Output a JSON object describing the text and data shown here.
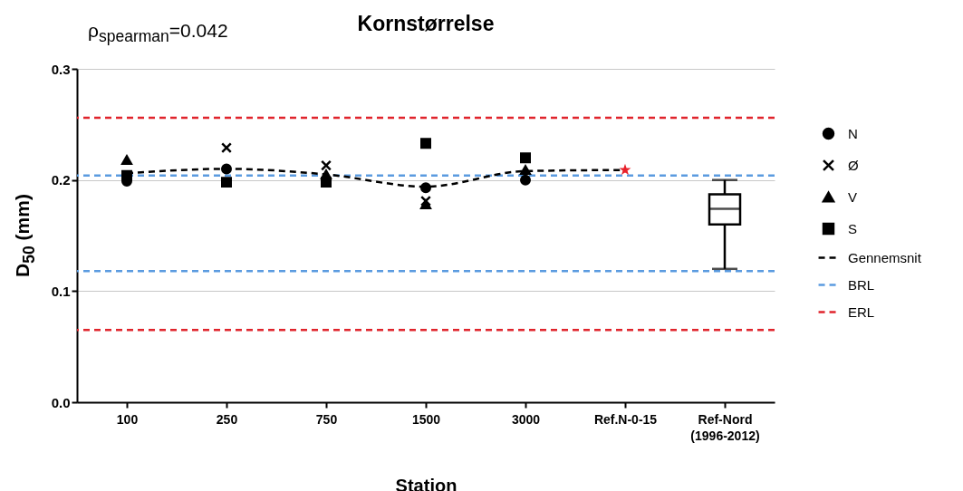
{
  "chart_data": {
    "type": "scatter",
    "title": "Kornstørrelse",
    "subtitle": "ρ$_{spearman}$=0.042",
    "xlabel": "Station",
    "ylabel": "D$_{50}$ (mm)",
    "categories": [
      "100",
      "250",
      "750",
      "1500",
      "3000",
      "Ref.N-0-15",
      "Ref-Nord (1996-2012)"
    ],
    "ylim": [
      0,
      0.3
    ],
    "yticks": [
      {
        "value": 0,
        "label": "0.0"
      },
      {
        "value": 0.1,
        "label": "0.1"
      },
      {
        "value": 0.2,
        "label": "0.2"
      },
      {
        "value": 0.3,
        "label": "0.3"
      }
    ],
    "grid": "y",
    "legend": "right",
    "series": [
      {
        "name": "N",
        "marker": "circle",
        "color": "#000000",
        "values": [
          0.199,
          0.21,
          null,
          0.193,
          0.2,
          null,
          null
        ]
      },
      {
        "name": "Ø",
        "marker": "cross",
        "color": "#000000",
        "values": [
          null,
          0.229,
          0.213,
          0.181,
          null,
          null,
          null
        ]
      },
      {
        "name": "V",
        "marker": "triangle",
        "color": "#000000",
        "values": [
          0.218,
          null,
          0.205,
          0.178,
          0.209,
          null,
          null
        ]
      },
      {
        "name": "S",
        "marker": "square",
        "color": "#000000",
        "values": [
          0.204,
          0.198,
          0.198,
          0.233,
          0.22,
          null,
          null
        ]
      },
      {
        "name": "Gennemsnit",
        "type": "line",
        "marker": "none",
        "line_style": "dashed",
        "color": "#000000",
        "values": [
          0.206,
          0.21,
          0.205,
          0.194,
          0.208,
          0.209,
          null
        ]
      },
      {
        "marker": "star",
        "color": "#e8212b",
        "values": [
          null,
          null,
          null,
          null,
          null,
          0.209,
          null
        ]
      },
      {
        "type": "box",
        "color": "#000000",
        "boxes": [
          null,
          null,
          null,
          null,
          null,
          null,
          {
            "low": 0.12,
            "q1": 0.16,
            "median": 0.174,
            "q3": 0.187,
            "high": 0.2
          }
        ]
      }
    ],
    "ref_lines": [
      {
        "axis": "y",
        "value": 0.204,
        "label": "BRL",
        "color": "#5b9be0",
        "line_style": "dashed"
      },
      {
        "axis": "y",
        "value": 0.118,
        "color": "#5b9be0",
        "line_style": "dashed"
      },
      {
        "axis": "y",
        "value": 0.256,
        "label": "ERL",
        "color": "#e0242c",
        "line_style": "dashed"
      },
      {
        "axis": "y",
        "value": 0.065,
        "color": "#e0242c",
        "line_style": "dashed"
      }
    ]
  }
}
